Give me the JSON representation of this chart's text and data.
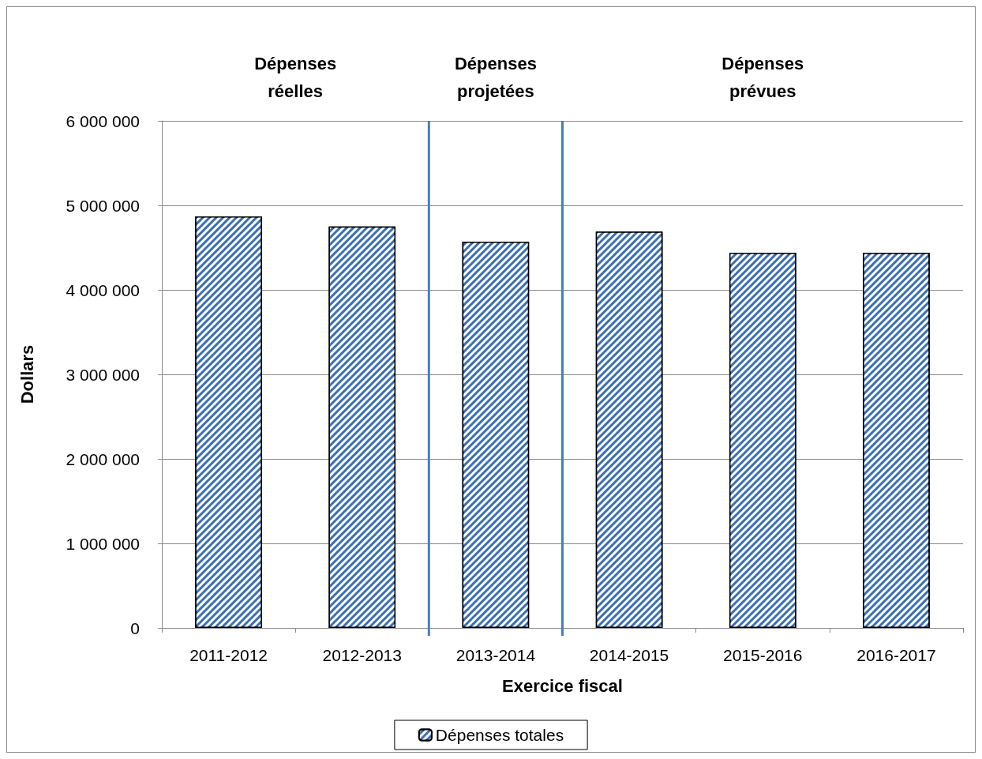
{
  "chart_data": {
    "type": "bar",
    "categories": [
      "2011-2012",
      "2012-2013",
      "2013-2014",
      "2014-2015",
      "2015-2016",
      "2016-2017"
    ],
    "series": [
      {
        "name": "Dépenses totales",
        "color": "#3a6fb5",
        "values": [
          4870000,
          4750000,
          4570000,
          4690000,
          4440000,
          4440000
        ]
      }
    ],
    "xlabel": "Exercice fiscal",
    "ylabel": "Dollars",
    "ylim": [
      0,
      6000000
    ],
    "yticks": [
      {
        "value": 0,
        "label": "0"
      },
      {
        "value": 1000000,
        "label": "1 000 000"
      },
      {
        "value": 2000000,
        "label": "2 000 000"
      },
      {
        "value": 3000000,
        "label": "3 000 000"
      },
      {
        "value": 4000000,
        "label": "4 000 000"
      },
      {
        "value": 5000000,
        "label": "5 000 000"
      },
      {
        "value": 6000000,
        "label": "6 000 000"
      }
    ],
    "annotations": [
      "Dépenses\nréelles",
      "Dépenses\nprojetées",
      "Dépenses\nprévues"
    ],
    "grid": "y",
    "legend": "bottom"
  }
}
